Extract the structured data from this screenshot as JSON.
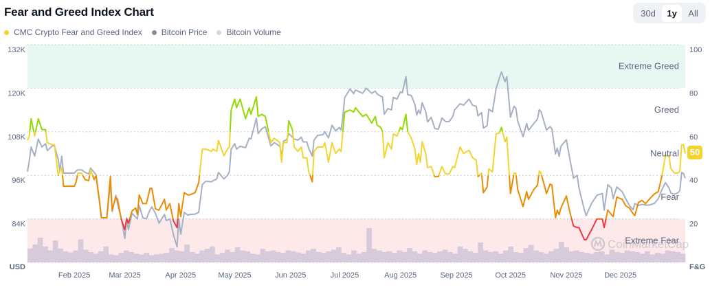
{
  "header": {
    "title": "Fear and Greed Index Chart",
    "legend": [
      {
        "label": "CMC Crypto Fear and Greed Index",
        "color": "#f3d42f"
      },
      {
        "label": "Bitcoin Price",
        "color": "#808a9d"
      },
      {
        "label": "Bitcoin Volume",
        "color": "#cfd6e4"
      }
    ],
    "range_tabs": [
      {
        "label": "30d",
        "selected": false
      },
      {
        "label": "1y",
        "selected": true
      },
      {
        "label": "All",
        "selected": false
      }
    ]
  },
  "current_value_badge": "50",
  "watermark": "CoinMarketCap",
  "chart_data": {
    "type": "line",
    "left_axis": {
      "label": "USD",
      "ticks": [
        "132K",
        "120K",
        "108K",
        "96K",
        "84K"
      ],
      "tick_values": [
        132,
        120,
        108,
        96,
        84
      ],
      "unit": "K"
    },
    "right_axis": {
      "label": "F&G",
      "ticks": [
        "100",
        "80",
        "60",
        "40",
        "20"
      ],
      "tick_values": [
        100,
        80,
        60,
        40,
        20
      ],
      "range": [
        0,
        100
      ]
    },
    "x_ticks": [
      {
        "label": "Feb 2025",
        "date": "2025-02-01"
      },
      {
        "label": "Mar 2025",
        "date": "2025-03-01"
      },
      {
        "label": "Apr 2025",
        "date": "2025-04-01"
      },
      {
        "label": "May 2025",
        "date": "2025-05-01"
      },
      {
        "label": "Jun 2025",
        "date": "2025-06-01"
      },
      {
        "label": "Jul 2025",
        "date": "2025-07-01"
      },
      {
        "label": "Aug 2025",
        "date": "2025-08-01"
      },
      {
        "label": "Sep 2025",
        "date": "2025-09-01"
      },
      {
        "label": "Oct 2025",
        "date": "2025-10-01"
      },
      {
        "label": "Nov 2025",
        "date": "2025-11-01"
      },
      {
        "label": "Dec 2025",
        "date": "2025-12-01"
      }
    ],
    "x_range": [
      "2025-01-06",
      "2026-01-06"
    ],
    "zones": [
      {
        "label": "Extreme Greed",
        "from": 80,
        "to": 100,
        "color": "#93d900",
        "band": "#e7f8f2"
      },
      {
        "label": "Greed",
        "from": 60,
        "to": 80,
        "color": "#93d900"
      },
      {
        "label": "Neutral",
        "from": 40,
        "to": 60,
        "color": "#f3d42f"
      },
      {
        "label": "Fear",
        "from": 20,
        "to": 40,
        "color": "#ea8c00"
      },
      {
        "label": "Extreme Fear",
        "from": 0,
        "to": 20,
        "color": "#ea3943",
        "band": "#fde9ea"
      }
    ],
    "grid": true,
    "legend_position": "top-left",
    "series_colors": {
      "price": "#a6b0c3",
      "volume": "#d6cadb"
    },
    "points": [
      [
        "2025-01-06",
        56,
        97.0
      ],
      [
        "2025-01-07",
        58,
        100.0
      ],
      [
        "2025-01-08",
        66,
        103.8
      ],
      [
        "2025-01-10",
        58,
        101.3
      ],
      [
        "2025-01-12",
        66,
        106.0
      ],
      [
        "2025-01-14",
        61,
        103.8
      ],
      [
        "2025-01-16",
        61,
        104.7
      ],
      [
        "2025-01-17",
        55,
        102.8
      ],
      [
        "2025-01-20",
        54,
        104.2
      ],
      [
        "2025-01-21",
        54,
        104.0
      ],
      [
        "2025-01-23",
        40,
        100.5
      ],
      [
        "2025-01-24",
        42,
        97.0
      ],
      [
        "2025-01-25",
        44,
        101.3
      ],
      [
        "2025-01-26",
        35,
        96.6
      ],
      [
        "2025-02-01",
        35,
        96.6
      ],
      [
        "2025-02-02",
        37,
        97.2
      ],
      [
        "2025-02-03",
        41,
        97.5
      ],
      [
        "2025-02-05",
        41,
        97.5
      ],
      [
        "2025-02-07",
        38,
        96.8
      ],
      [
        "2025-02-09",
        37.5,
        96.4
      ],
      [
        "2025-02-10",
        42.5,
        98.0
      ],
      [
        "2025-02-12",
        38,
        96.8
      ],
      [
        "2025-02-13",
        40,
        96.2
      ],
      [
        "2025-02-15",
        28,
        88.3
      ],
      [
        "2025-02-16",
        20.5,
        84.3
      ],
      [
        "2025-02-19",
        20.5,
        84.3
      ],
      [
        "2025-02-21",
        39.5,
        94.0
      ],
      [
        "2025-02-22",
        24,
        86.0
      ],
      [
        "2025-02-24",
        30,
        90.5
      ],
      [
        "2025-02-25",
        29,
        88.0
      ],
      [
        "2025-02-27",
        20,
        84.3
      ],
      [
        "2025-03-01",
        15,
        78.6
      ],
      [
        "2025-03-02",
        20,
        84.3
      ],
      [
        "2025-03-03",
        18,
        81.0
      ],
      [
        "2025-03-05",
        23.6,
        85.5
      ],
      [
        "2025-03-07",
        25,
        84.5
      ],
      [
        "2025-03-08",
        22,
        84.0
      ],
      [
        "2025-03-09",
        31,
        87.7
      ],
      [
        "2025-03-11",
        27,
        84.3
      ],
      [
        "2025-03-13",
        27,
        84.0
      ],
      [
        "2025-03-15",
        34,
        86.5
      ],
      [
        "2025-03-16",
        34,
        87.3
      ],
      [
        "2025-03-18",
        24.6,
        85.5
      ],
      [
        "2025-03-20",
        24,
        82.8
      ],
      [
        "2025-03-23",
        29,
        85.2
      ],
      [
        "2025-03-24",
        24,
        83.5
      ],
      [
        "2025-03-26",
        27,
        84.0
      ],
      [
        "2025-03-28",
        19,
        79.6
      ],
      [
        "2025-03-30",
        16,
        76.3
      ],
      [
        "2025-03-31",
        27,
        84.0
      ],
      [
        "2025-04-01",
        21,
        79.7
      ],
      [
        "2025-04-03",
        32,
        85.8
      ],
      [
        "2025-04-05",
        31,
        85.0
      ],
      [
        "2025-04-06",
        31,
        85.2
      ],
      [
        "2025-04-09",
        32,
        85.3
      ],
      [
        "2025-04-11",
        36.6,
        85.8
      ],
      [
        "2025-04-13",
        52,
        93.4
      ],
      [
        "2025-04-15",
        52,
        94.4
      ],
      [
        "2025-04-18",
        51,
        94.2
      ],
      [
        "2025-04-19",
        52,
        94.5
      ],
      [
        "2025-04-21",
        51,
        95.0
      ],
      [
        "2025-04-22",
        56,
        96.8
      ],
      [
        "2025-04-25",
        49,
        95.0
      ],
      [
        "2025-04-27",
        52,
        96.0
      ],
      [
        "2025-04-28",
        53,
        97.0
      ],
      [
        "2025-04-29",
        70,
        103.2
      ],
      [
        "2025-05-01",
        75,
        104.7
      ],
      [
        "2025-05-02",
        71,
        103.2
      ],
      [
        "2025-05-04",
        75,
        104.0
      ],
      [
        "2025-05-07",
        66,
        103.6
      ],
      [
        "2025-05-09",
        71,
        106.2
      ],
      [
        "2025-05-10",
        68,
        106.0
      ],
      [
        "2025-05-13",
        76,
        111.7
      ],
      [
        "2025-05-14",
        67,
        107.5
      ],
      [
        "2025-05-16",
        68,
        108.8
      ],
      [
        "2025-05-18",
        67,
        109.4
      ],
      [
        "2025-05-21",
        55,
        104.1
      ],
      [
        "2025-05-23",
        57,
        105.0
      ],
      [
        "2025-05-26",
        55,
        104.0
      ],
      [
        "2025-05-27",
        46,
        101.3
      ],
      [
        "2025-05-28",
        55,
        105.3
      ],
      [
        "2025-05-30",
        55,
        106.0
      ],
      [
        "2025-05-31",
        65,
        107.5
      ],
      [
        "2025-06-02",
        61,
        106.5
      ],
      [
        "2025-06-03",
        53,
        106.0
      ],
      [
        "2025-06-05",
        51,
        105.7
      ],
      [
        "2025-06-07",
        53,
        106.5
      ],
      [
        "2025-06-08",
        48,
        105.2
      ],
      [
        "2025-06-10",
        48,
        105.2
      ],
      [
        "2025-06-11",
        42,
        103.5
      ],
      [
        "2025-06-13",
        37,
        101.3
      ],
      [
        "2025-06-14",
        51,
        105.7
      ],
      [
        "2025-06-16",
        53,
        107.0
      ],
      [
        "2025-06-19",
        53,
        107.2
      ],
      [
        "2025-06-20",
        55,
        108.0
      ],
      [
        "2025-06-22",
        46,
        106.3
      ],
      [
        "2025-06-24",
        55,
        109.8
      ],
      [
        "2025-06-26",
        50,
        108.2
      ],
      [
        "2025-06-28",
        52,
        109.2
      ],
      [
        "2025-06-29",
        51,
        108.5
      ],
      [
        "2025-06-30",
        60,
        112.0
      ],
      [
        "2025-07-01",
        69,
        117.4
      ],
      [
        "2025-07-04",
        70,
        119.8
      ],
      [
        "2025-07-06",
        69,
        118.5
      ],
      [
        "2025-07-07",
        71,
        119.5
      ],
      [
        "2025-07-11",
        67,
        118.6
      ],
      [
        "2025-07-13",
        68,
        120.0
      ],
      [
        "2025-07-16",
        64,
        118.6
      ],
      [
        "2025-07-18",
        67,
        119.2
      ],
      [
        "2025-07-19",
        63,
        118.4
      ],
      [
        "2025-07-21",
        62,
        117.8
      ],
      [
        "2025-07-22",
        60,
        117.6
      ],
      [
        "2025-07-23",
        48,
        112.8
      ],
      [
        "2025-07-25",
        55,
        114.4
      ],
      [
        "2025-07-27",
        52,
        114.0
      ],
      [
        "2025-07-28",
        59,
        117.5
      ],
      [
        "2025-07-30",
        58,
        117.0
      ],
      [
        "2025-08-01",
        62,
        119.0
      ],
      [
        "2025-08-02",
        61,
        118.7
      ],
      [
        "2025-08-04",
        68,
        123.2
      ],
      [
        "2025-08-05",
        60,
        118.2
      ],
      [
        "2025-08-07",
        57,
        118.0
      ],
      [
        "2025-08-09",
        52,
        115.5
      ],
      [
        "2025-08-10",
        45,
        112.6
      ],
      [
        "2025-08-11",
        50,
        114.0
      ],
      [
        "2025-08-12",
        46,
        113.0
      ],
      [
        "2025-08-13",
        55.5,
        116.0
      ],
      [
        "2025-08-15",
        50,
        113.6
      ],
      [
        "2025-08-16",
        43.5,
        110.7
      ],
      [
        "2025-08-18",
        44,
        112.0
      ],
      [
        "2025-08-20",
        39.4,
        108.9
      ],
      [
        "2025-08-22",
        39.4,
        108.7
      ],
      [
        "2025-08-24",
        44,
        111.8
      ],
      [
        "2025-08-26",
        40.6,
        110.8
      ],
      [
        "2025-08-28",
        40.6,
        110.8
      ],
      [
        "2025-08-30",
        44,
        112.2
      ],
      [
        "2025-08-31",
        43.5,
        114.0
      ],
      [
        "2025-09-03",
        53,
        115.7
      ],
      [
        "2025-09-05",
        50,
        115.3
      ],
      [
        "2025-09-08",
        51.5,
        117.0
      ],
      [
        "2025-09-10",
        48,
        115.3
      ],
      [
        "2025-09-12",
        47,
        115.0
      ],
      [
        "2025-09-13",
        39.4,
        112.4
      ],
      [
        "2025-09-15",
        41,
        113.3
      ],
      [
        "2025-09-16",
        32,
        109.0
      ],
      [
        "2025-09-18",
        34.5,
        109.6
      ],
      [
        "2025-09-19",
        43,
        114.2
      ],
      [
        "2025-09-21",
        41.5,
        113.5
      ],
      [
        "2025-09-23",
        59,
        119.8
      ],
      [
        "2025-09-25",
        59.5,
        123.0
      ],
      [
        "2025-09-26",
        62,
        124.5
      ],
      [
        "2025-09-28",
        55.5,
        121.8
      ],
      [
        "2025-09-29",
        57.5,
        123.2
      ],
      [
        "2025-10-01",
        31.6,
        112.0
      ],
      [
        "2025-10-03",
        41,
        115.0
      ],
      [
        "2025-10-04",
        41,
        114.5
      ],
      [
        "2025-10-05",
        33.5,
        111.0
      ],
      [
        "2025-10-08",
        25.6,
        106.6
      ],
      [
        "2025-10-10",
        32.5,
        110.3
      ],
      [
        "2025-10-11",
        29,
        108.4
      ],
      [
        "2025-10-14",
        33.5,
        110.3
      ],
      [
        "2025-10-16",
        35.5,
        111.5
      ],
      [
        "2025-10-17",
        42,
        114.1
      ],
      [
        "2025-10-18",
        41,
        113.5
      ],
      [
        "2025-10-21",
        31.6,
        108.5
      ],
      [
        "2025-10-23",
        36,
        109.4
      ],
      [
        "2025-10-24",
        35.5,
        108.8
      ],
      [
        "2025-10-26",
        20.5,
        101.9
      ],
      [
        "2025-10-27",
        24,
        103.5
      ],
      [
        "2025-10-28",
        22,
        101.2
      ],
      [
        "2025-10-29",
        25,
        104.0
      ],
      [
        "2025-11-01",
        30.5,
        105.8
      ],
      [
        "2025-11-03",
        23,
        100.4
      ],
      [
        "2025-11-05",
        16.7,
        95.2
      ],
      [
        "2025-11-07",
        16,
        96.0
      ],
      [
        "2025-11-08",
        16,
        92.6
      ],
      [
        "2025-11-11",
        10.4,
        86.4
      ],
      [
        "2025-11-12",
        10.4,
        84.9
      ],
      [
        "2025-11-15",
        15,
        88.3
      ],
      [
        "2025-11-18",
        20,
        90.5
      ],
      [
        "2025-11-21",
        20,
        91.0
      ],
      [
        "2025-11-22",
        16,
        86.4
      ],
      [
        "2025-11-24",
        24,
        93.4
      ],
      [
        "2025-11-26",
        22,
        92.5
      ],
      [
        "2025-11-27",
        21,
        89.6
      ],
      [
        "2025-11-29",
        30,
        92.8
      ],
      [
        "2025-12-02",
        29,
        91.5
      ],
      [
        "2025-12-04",
        26,
        89.5
      ],
      [
        "2025-12-06",
        25,
        87.7
      ],
      [
        "2025-12-08",
        22.4,
        86.5
      ],
      [
        "2025-12-09",
        21.5,
        88.2
      ],
      [
        "2025-12-11",
        27.5,
        87.7
      ],
      [
        "2025-12-13",
        28.5,
        88.0
      ],
      [
        "2025-12-15",
        27,
        87.8
      ],
      [
        "2025-12-17",
        29,
        87.8
      ],
      [
        "2025-12-20",
        31.5,
        88.3
      ],
      [
        "2025-12-22",
        32.5,
        89.5
      ],
      [
        "2025-12-24",
        39.4,
        92.0
      ],
      [
        "2025-12-26",
        49,
        94.0
      ],
      [
        "2025-12-28",
        49,
        92.5
      ],
      [
        "2025-12-29",
        43,
        91.1
      ],
      [
        "2025-12-31",
        41,
        90.8
      ],
      [
        "2026-01-02",
        41,
        91.2
      ],
      [
        "2026-01-03",
        42,
        91.8
      ],
      [
        "2026-01-04",
        54,
        96.8
      ],
      [
        "2026-01-05",
        54,
        96.5
      ],
      [
        "2026-01-06",
        50,
        95.2
      ]
    ],
    "points_columns": [
      "date",
      "fear_greed",
      "btc_price_k"
    ],
    "volume_relative": [
      35,
      45,
      62,
      40,
      30,
      55,
      35,
      28,
      25,
      30,
      58,
      32,
      26,
      22,
      28,
      40,
      20,
      18,
      24,
      30,
      26,
      22,
      20,
      24,
      18,
      20,
      22,
      24,
      36,
      30,
      28,
      45,
      26,
      22,
      30,
      34,
      40,
      20,
      24,
      32,
      26,
      38,
      30,
      28,
      22,
      20,
      34,
      28,
      30,
      26,
      24,
      30,
      28,
      25,
      22,
      30,
      34,
      26,
      24,
      28,
      32,
      38,
      24,
      20,
      30,
      22,
      26,
      86,
      34,
      30,
      26,
      28,
      24,
      30,
      26,
      36,
      28,
      22,
      30,
      26,
      24,
      28,
      32,
      26,
      22,
      40,
      34,
      28,
      24,
      50,
      30,
      26,
      28,
      22,
      30,
      40,
      26,
      24,
      36,
      44,
      30,
      26,
      22,
      28,
      34,
      52,
      38,
      28,
      30,
      26,
      24,
      22,
      26,
      28,
      20,
      32,
      26,
      24,
      30,
      28,
      26,
      22,
      28,
      20,
      24,
      22,
      30,
      28,
      26,
      22
    ]
  }
}
